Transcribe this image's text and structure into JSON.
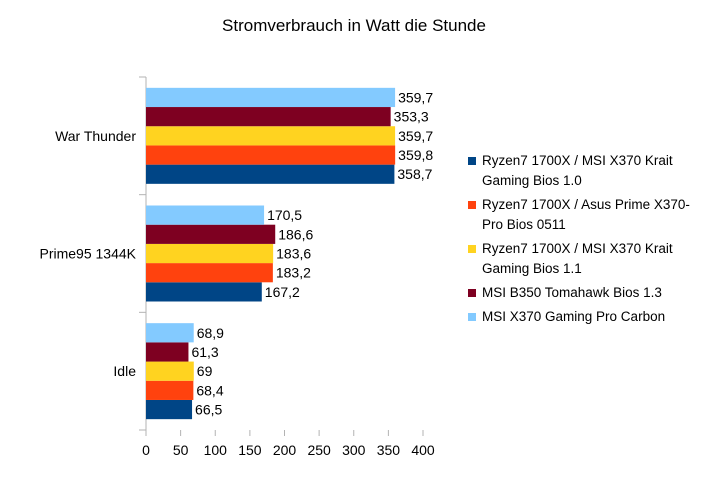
{
  "chart_data": {
    "type": "bar",
    "orientation": "horizontal",
    "title": "Stromverbrauch in Watt die Stunde",
    "xlabel": "",
    "ylabel": "",
    "categories": [
      "War Thunder",
      "Prime95 1344K",
      "Idle"
    ],
    "series": [
      {
        "name": "Ryzen7 1700X / MSI X370 Krait Gaming Bios 1.0",
        "color": "#004586",
        "values": [
          358.7,
          167.2,
          66.5
        ],
        "labels": [
          "358,7",
          "167,2",
          "66,5"
        ]
      },
      {
        "name": "Ryzen7 1700X / Asus Prime X370-Pro Bios 0511",
        "color": "#ff420e",
        "values": [
          359.8,
          183.2,
          68.4
        ],
        "labels": [
          "359,8",
          "183,2",
          "68,4"
        ]
      },
      {
        "name": "Ryzen7 1700X / MSI X370 Krait Gaming Bios 1.1",
        "color": "#ffd320",
        "values": [
          359.7,
          183.6,
          69
        ],
        "labels": [
          "359,7",
          "183,6",
          "69"
        ]
      },
      {
        "name": "MSI B350 Tomahawk Bios 1.3",
        "color": "#7e0021",
        "values": [
          353.3,
          186.6,
          61.3
        ],
        "labels": [
          "353,3",
          "186,6",
          "61,3"
        ]
      },
      {
        "name": "MSI X370 Gaming Pro Carbon",
        "color": "#83caff",
        "values": [
          359.7,
          170.5,
          68.9
        ],
        "labels": [
          "359,7",
          "170,5",
          "68,9"
        ]
      }
    ],
    "xlim": [
      0,
      400
    ],
    "xticks": [
      0,
      50,
      100,
      150,
      200,
      250,
      300,
      350,
      400
    ],
    "grid": false,
    "legend_position": "right"
  }
}
